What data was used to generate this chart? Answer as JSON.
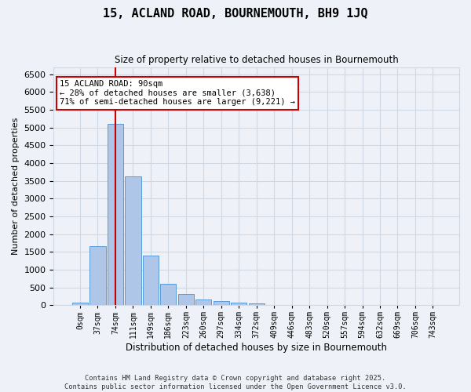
{
  "title": "15, ACLAND ROAD, BOURNEMOUTH, BH9 1JQ",
  "subtitle": "Size of property relative to detached houses in Bournemouth",
  "xlabel": "Distribution of detached houses by size in Bournemouth",
  "ylabel": "Number of detached properties",
  "footer_line1": "Contains HM Land Registry data © Crown copyright and database right 2025.",
  "footer_line2": "Contains public sector information licensed under the Open Government Licence v3.0.",
  "bin_labels": [
    "0sqm",
    "37sqm",
    "74sqm",
    "111sqm",
    "149sqm",
    "186sqm",
    "223sqm",
    "260sqm",
    "297sqm",
    "334sqm",
    "372sqm",
    "409sqm",
    "446sqm",
    "483sqm",
    "520sqm",
    "557sqm",
    "594sqm",
    "632sqm",
    "669sqm",
    "706sqm",
    "743sqm"
  ],
  "bar_values": [
    70,
    1650,
    5100,
    3630,
    1400,
    610,
    310,
    155,
    110,
    75,
    40,
    0,
    0,
    0,
    0,
    0,
    0,
    0,
    0,
    0,
    0
  ],
  "bar_color": "#aec6e8",
  "bar_edge_color": "#5b9bd5",
  "grid_color": "#d0d8e4",
  "background_color": "#eef2f8",
  "marker_bin_index": 2,
  "annotation_title": "15 ACLAND ROAD: 90sqm",
  "annotation_line1": "← 28% of detached houses are smaller (3,638)",
  "annotation_line2": "71% of semi-detached houses are larger (9,221) →",
  "annotation_box_color": "#ffffff",
  "annotation_box_edge": "#cc0000",
  "marker_line_color": "#cc0000",
  "ylim": [
    0,
    6700
  ],
  "yticks": [
    0,
    500,
    1000,
    1500,
    2000,
    2500,
    3000,
    3500,
    4000,
    4500,
    5000,
    5500,
    6000,
    6500
  ]
}
